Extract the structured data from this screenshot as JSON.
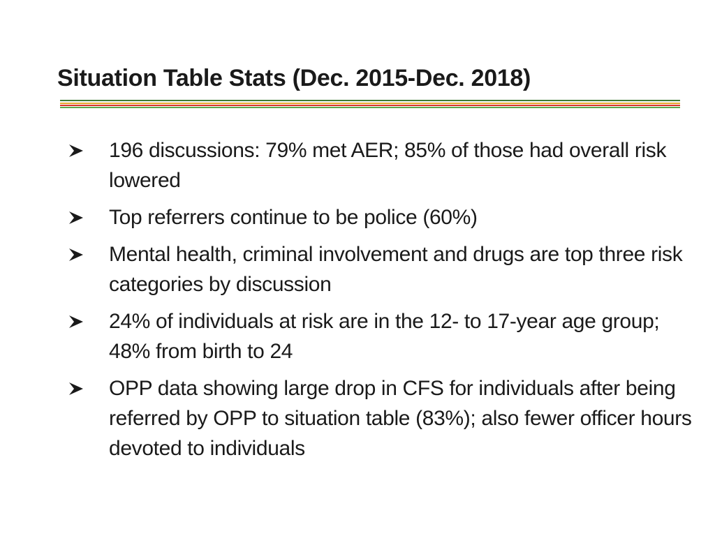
{
  "slide": {
    "title": "Situation Table Stats (Dec. 2015-Dec. 2018)",
    "rule_colors": [
      "#3d7a34",
      "#e5a72a",
      "#d9342b",
      "#5fa84a"
    ],
    "bullet_icon": "arrowhead-bullet-icon",
    "bullets": [
      {
        "text": "196 discussions: 79% met AER; 85% of those had overall risk lowered"
      },
      {
        "text": "Top referrers continue to be police (60%)"
      },
      {
        "text": "Mental health, criminal involvement and drugs are top three risk categories by discussion"
      },
      {
        "text": "24% of individuals at risk are in the 12- to 17-year age group; 48% from birth to 24"
      },
      {
        "text": "OPP data showing large drop in CFS for individuals after being referred by OPP to situation table (83%); also fewer officer hours devoted to individuals"
      }
    ]
  }
}
